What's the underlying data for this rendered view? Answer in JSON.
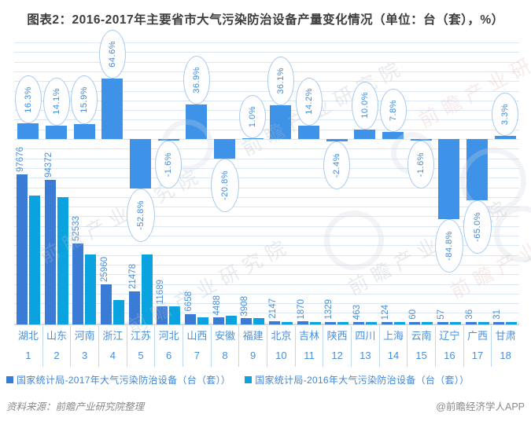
{
  "title": "图表2：2016-2017年主要省市大气污染防治设备产量变化情况（单位：台（套），%）",
  "legend": {
    "items": [
      {
        "label": "国家统计局-2017年大气污染防治设备（台（套））",
        "color": "#3a7bd5"
      },
      {
        "label": "国家统计局-2016年大气污染防治设备（台（套））",
        "color": "#0ba3df"
      }
    ]
  },
  "footer": {
    "source": "资料来源：前瞻产业研究院整理",
    "brand": "@前瞻经济学人APP"
  },
  "watermark_text": "前瞻产业研究院",
  "colors": {
    "bar_2017": "#3a7bd5",
    "bar_2016": "#0ba3df",
    "bar_pct": "#3e92e8",
    "bubble_border": "#a6c9ef",
    "bubble_text": "#3f8ad9",
    "axis_text": "#4a90d9",
    "grid": "#dce7f5"
  },
  "chart_data": {
    "type": "bar",
    "title": "2016-2017年主要省市大气污染防治设备产量变化情况",
    "unit": "台（套），%",
    "categories": [
      "湖北",
      "山东",
      "河南",
      "浙江",
      "江苏",
      "河北",
      "山西",
      "安徽",
      "福建",
      "北京",
      "吉林",
      "陕西",
      "四川",
      "上海",
      "云南",
      "辽宁",
      "广西",
      "甘肃"
    ],
    "category_index": [
      "1",
      "2",
      "3",
      "4",
      "5",
      "6",
      "7",
      "8",
      "9",
      "10",
      "11",
      "12",
      "13",
      "14",
      "15",
      "16",
      "17",
      "18"
    ],
    "series": [
      {
        "name": "国家统计局-2017年大气污染防治设备（台（套））",
        "axis": "left",
        "color": "#3a7bd5",
        "values": [
          97676,
          94372,
          52533,
          25960,
          21478,
          11689,
          6658,
          4488,
          3908,
          2147,
          1870,
          1329,
          463,
          124,
          60,
          57,
          36,
          31
        ]
      },
      {
        "name": "国家统计局-2016年大气污染防治设备（台（套））",
        "axis": "left",
        "color": "#0ba3df",
        "note": "2016 values are not printed on the chart; estimated from bar heights / growth rates",
        "values": [
          83986,
          82710,
          45326,
          15772,
          45504,
          11879,
          4864,
          5667,
          3869,
          1578,
          1637,
          1362,
          421,
          115,
          61,
          375,
          103,
          30
        ]
      },
      {
        "name": "同比增长率（%）",
        "axis": "right",
        "color": "#3e92e8",
        "values": [
          16.3,
          14.1,
          15.9,
          64.6,
          -52.8,
          -1.6,
          36.9,
          -20.8,
          1.0,
          36.1,
          14.2,
          -2.4,
          10.0,
          7.8,
          -1.6,
          -84.8,
          -65.0,
          3.3
        ]
      }
    ],
    "value_labels": [
      "97676",
      "94372",
      "52533",
      "25960",
      "21478",
      "11689",
      "6658",
      "4488",
      "3908",
      "2147",
      "1870",
      "1329",
      "463",
      "124",
      "60",
      "57",
      "36",
      "31"
    ],
    "pct_labels": [
      "16.3%",
      "14.1%",
      "15.9%",
      "64.6%",
      "-52.8%",
      "-1.6%",
      "36.9%",
      "-20.8%",
      "1.0%",
      "36.1%",
      "14.2%",
      "-2.4%",
      "10.0%",
      "7.8%",
      "-1.6%",
      "-84.8%",
      "-65.0%",
      "3.3%"
    ],
    "ylim_left": [
      0,
      102000
    ],
    "ylim_right_pct": [
      -100,
      70
    ],
    "grid": true,
    "legend_position": "bottom"
  }
}
